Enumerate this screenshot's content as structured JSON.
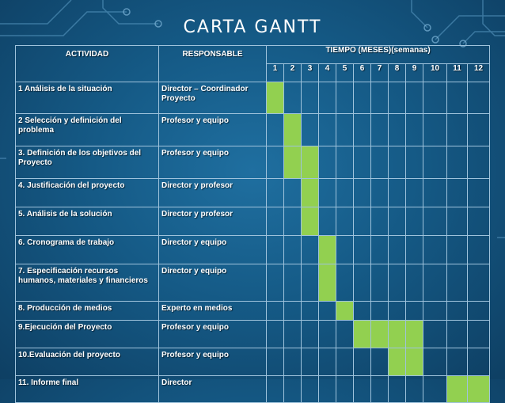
{
  "title": "CARTA GANTT",
  "colors": {
    "fill": "#92d050",
    "border": "#9fc3dc",
    "text": "#ffffff"
  },
  "headers": {
    "activity": "ACTIVIDAD",
    "responsible": "RESPONSABLE",
    "time": "TIEMPO (MESES)(semanas)"
  },
  "weeks": [
    "1",
    "2",
    "3",
    "4",
    "5",
    "6",
    "7",
    "8",
    "9",
    "10",
    "11",
    "12"
  ],
  "rows": [
    {
      "activity": "1 Análisis de la situación",
      "responsible": "Director – Coordinador Proyecto",
      "weeks": [
        1
      ]
    },
    {
      "activity": "2 Selección y definición del problema",
      "responsible": "Profesor y equipo",
      "weeks": [
        2
      ]
    },
    {
      "activity": "3. Definición de los objetivos del Proyecto",
      "responsible": "Profesor y equipo",
      "weeks": [
        2,
        3
      ]
    },
    {
      "activity": "4. Justificación del proyecto",
      "responsible": "Director y profesor",
      "weeks": [
        3
      ]
    },
    {
      "activity": "5. Análisis de la solución",
      "responsible": "Director y profesor",
      "weeks": [
        3
      ]
    },
    {
      "activity": "6. Cronograma de trabajo",
      "responsible": "Director y equipo",
      "weeks": [
        4
      ]
    },
    {
      "activity": "7. Especificación recursos humanos, materiales y financieros",
      "responsible": "Director y equipo",
      "weeks": [
        4
      ]
    },
    {
      "activity": "8. Producción de medios",
      "responsible": "Experto en medios",
      "weeks": [
        5
      ]
    },
    {
      "activity": "9.Ejecución del Proyecto",
      "responsible": "Profesor y equipo",
      "weeks": [
        6,
        7,
        8,
        9
      ]
    },
    {
      "activity": "10.Evaluación del proyecto",
      "responsible": "Profesor y equipo",
      "weeks": [
        8,
        9
      ]
    },
    {
      "activity": "11. Informe final",
      "responsible": "Director",
      "weeks": [
        11,
        12
      ]
    }
  ]
}
